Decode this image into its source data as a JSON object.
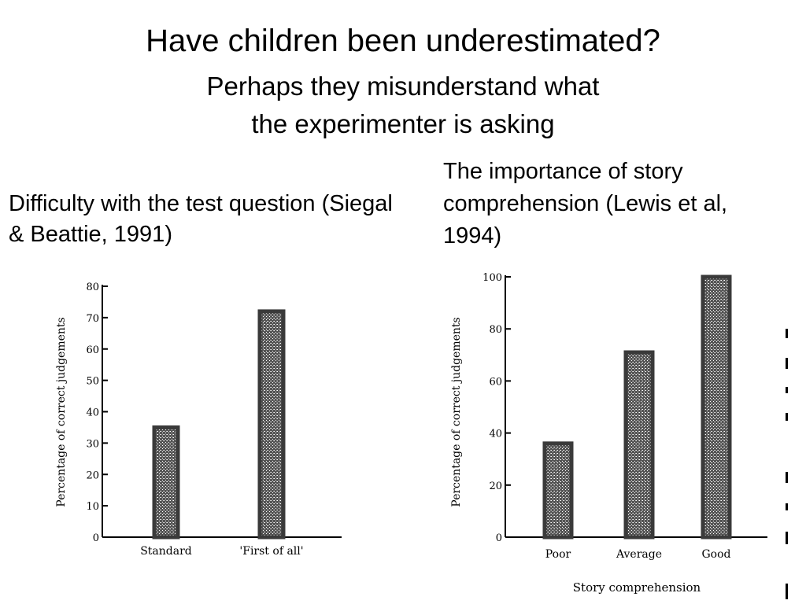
{
  "slide": {
    "title": "Have children been underestimated?",
    "subtitle": "Perhaps they misunderstand what the experimenter is asking",
    "caption_left": "Difficulty with the test question (Siegal & Beattie, 1991)",
    "caption_right": "The importance of story comprehension (Lewis et al, 1994)"
  },
  "chart_data": [
    {
      "type": "bar",
      "categories": [
        "Standard",
        "'First of all'"
      ],
      "values": [
        35,
        72
      ],
      "ylabel": "Percentage of correct judgements",
      "xlabel": "",
      "ylim": [
        0,
        80
      ],
      "yticks": [
        0,
        10,
        20,
        30,
        40,
        50,
        60,
        70,
        80
      ],
      "bar_fill": "#3a3a3a"
    },
    {
      "type": "bar",
      "categories": [
        "Poor",
        "Average",
        "Good"
      ],
      "values": [
        36,
        71,
        100
      ],
      "ylabel": "Percentage of correct judgements",
      "xlabel": "Story comprehension",
      "ylim": [
        0,
        100
      ],
      "yticks": [
        0,
        20,
        40,
        60,
        80,
        100
      ],
      "bar_fill": "#3a3a3a"
    }
  ]
}
